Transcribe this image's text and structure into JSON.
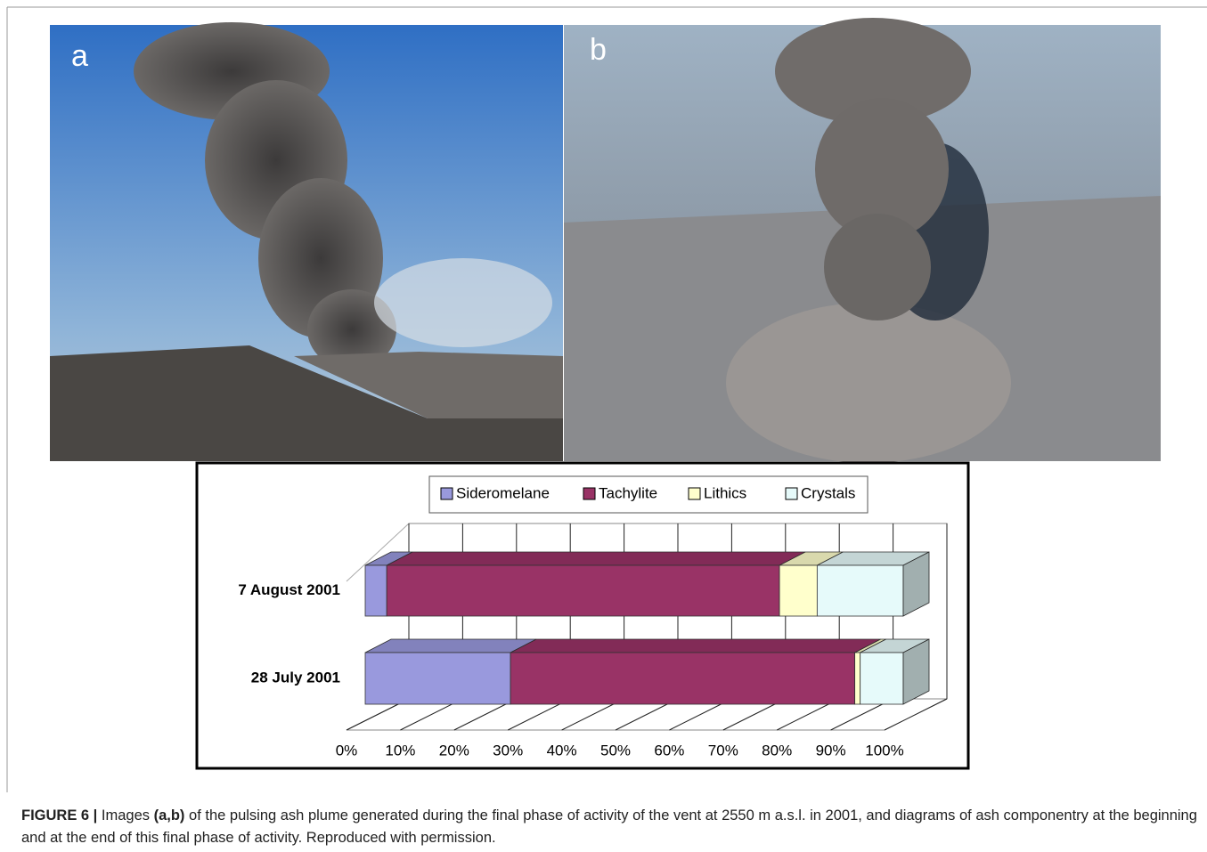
{
  "panels": {
    "a": "a",
    "b": "b"
  },
  "chart_data": {
    "type": "stacked-bar-3d",
    "categories": [
      "7 August 2001",
      "28 July 2001"
    ],
    "series": [
      {
        "name": "Sideromelane",
        "color": "#9999dd",
        "values": [
          4,
          27
        ]
      },
      {
        "name": "Tachylite",
        "color": "#993366",
        "values": [
          73,
          64
        ]
      },
      {
        "name": "Lithics",
        "color": "#ffffcc",
        "values": [
          7,
          1
        ]
      },
      {
        "name": "Crystals",
        "color": "#e6fafa",
        "values": [
          16,
          8
        ]
      }
    ],
    "xlim": [
      0,
      100
    ],
    "xticks": [
      {
        "value": 0,
        "label": "0%"
      },
      {
        "value": 10,
        "label": "10%"
      },
      {
        "value": 20,
        "label": "20%"
      },
      {
        "value": 30,
        "label": "30%"
      },
      {
        "value": 40,
        "label": "40%"
      },
      {
        "value": 50,
        "label": "50%"
      },
      {
        "value": 60,
        "label": "60%"
      },
      {
        "value": 70,
        "label": "70%"
      },
      {
        "value": 80,
        "label": "80%"
      },
      {
        "value": 90,
        "label": "90%"
      },
      {
        "value": 100,
        "label": "100%"
      }
    ],
    "grid": true
  },
  "caption": {
    "label": "FIGURE 6 |",
    "parts": [
      "Images ",
      "(a,b)",
      " of the pulsing ash plume generated during the final phase of activity of the vent at 2550 m a.s.l. in 2001, and diagrams of ash componentry at the beginning and at the end of this final phase of activity. Reproduced with permission."
    ]
  }
}
